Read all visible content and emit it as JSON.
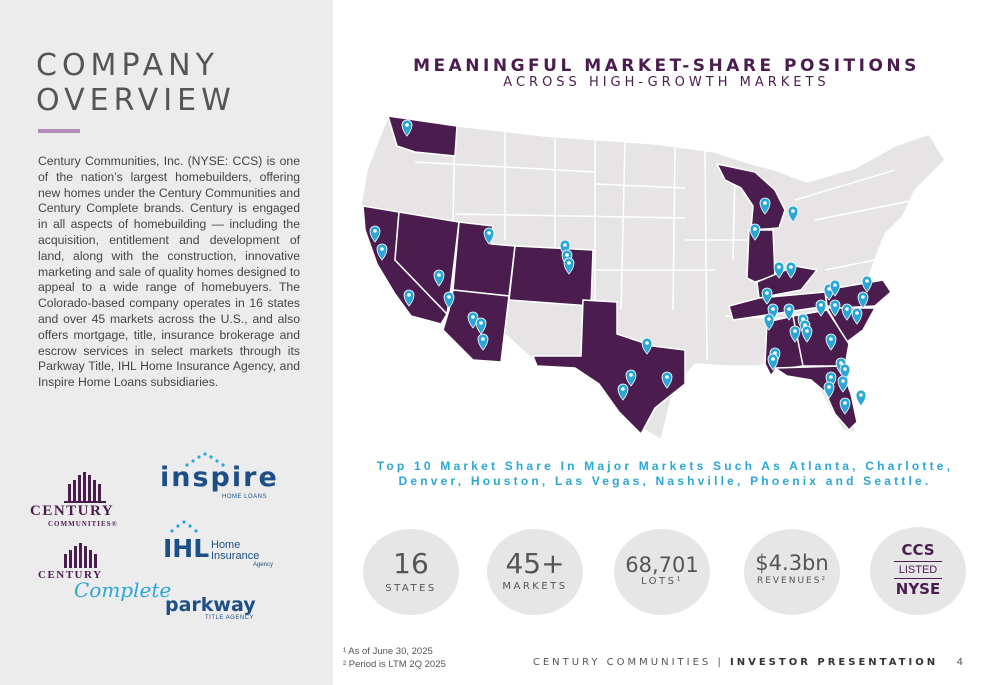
{
  "left": {
    "title_line1": "COMPANY",
    "title_line2": "OVERVIEW",
    "overview": "Century Communities, Inc. (NYSE: CCS) is one of the nation’s largest homebuilders, offering new homes under the Century Communities and Century Complete brands. Century is engaged in all aspects of homebuilding — including the acquisition, entitlement and development of land, along with the construction, innovative marketing and sale of quality homes designed to appeal to a wide range of homebuyers. The Colorado-based company operates in 16 states and over 45 markets across the U.S., and also offers mortgage, title, insurance brokerage and escrow services in select markets through its Parkway Title, IHL Home Insurance Agency, and Inspire Home Loans subsidiaries.",
    "logos": {
      "century_line1": "CENTURY",
      "century_line2": "COMMUNITIES®",
      "complete_line1": "CENTURY",
      "complete_line2": "Complete",
      "inspire_main": "inspire",
      "inspire_sub": "HOME LOANS",
      "ihl_main": "IHL",
      "ihl_home": "Home",
      "ihl_insurance": "Insurance",
      "ihl_agency": "Agency",
      "parkway_main": "parkway",
      "parkway_sub": "TITLE AGENCY"
    }
  },
  "heading": "MEANINGFUL MARKET-SHARE POSITIONS",
  "subheading": "ACROSS HIGH-GROWTH MARKETS",
  "callout": "Top 10 Market Share In Major Markets Such As Atlanta, Charlotte, Denver, Houston, Las Vegas, Nashville, Phoenix and Seattle.",
  "stats": [
    {
      "value": "16",
      "label": "STATES"
    },
    {
      "value": "45+",
      "label": "MARKETS"
    },
    {
      "value": "68,701",
      "label": "LOTS¹"
    },
    {
      "value": "$4.3bn",
      "label": "REVENUES²"
    }
  ],
  "ccs_badge": {
    "line1": "CCS",
    "line2": "LISTED",
    "line3": "NYSE"
  },
  "footnotes": [
    "¹ As of June 30, 2025",
    "² Period is LTM 2Q 2025"
  ],
  "footer": {
    "company": "CENTURY COMMUNITIES",
    "separator": "|",
    "doc": "INVESTOR PRESENTATION",
    "page": "4"
  },
  "colors": {
    "brand_purple": "#4b1d4f",
    "accent_blue": "#2aa7d6",
    "map_gray": "#e6e4e4"
  }
}
